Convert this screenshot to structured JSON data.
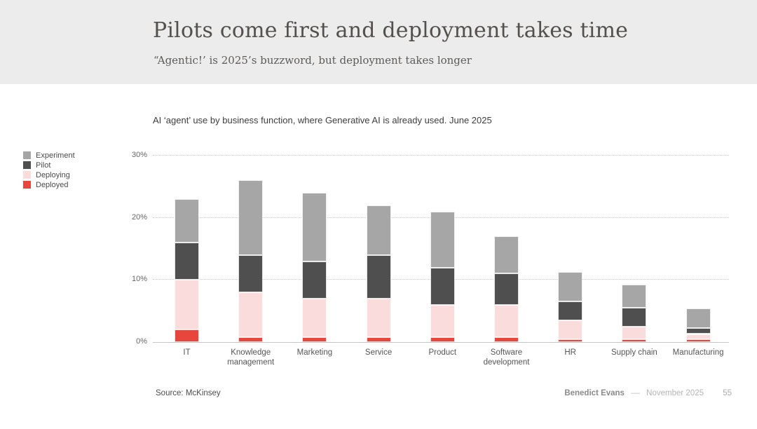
{
  "slide": {
    "title": "Pilots come first and deployment takes time",
    "subtitle": "“Agentic!’ is 2025’s buzzword, but deployment takes longer",
    "source": "Source: McKinsey",
    "footer": {
      "author": "Benedict Evans",
      "separator": "––",
      "date": "November 2025",
      "page": "55"
    }
  },
  "chart_data": {
    "type": "bar",
    "stacked": true,
    "title": "AI ‘agent’ use by business function, where Generative AI is already used. June 2025",
    "categories": [
      "IT",
      "Knowledge management",
      "Marketing",
      "Service",
      "Product",
      "Software development",
      "HR",
      "Supply chain",
      "Manufacturing"
    ],
    "series": [
      {
        "name": "Deployed",
        "color": "#e8463d",
        "values": [
          2.0,
          0.8,
          0.8,
          0.8,
          0.8,
          0.8,
          0.4,
          0.4,
          0.4
        ]
      },
      {
        "name": "Deploying",
        "color": "#fadcdc",
        "values": [
          8.0,
          7.2,
          6.2,
          6.2,
          5.2,
          5.2,
          3.1,
          2.1,
          0.9
        ]
      },
      {
        "name": "Pilot",
        "color": "#4f4f4f",
        "values": [
          6.0,
          6.0,
          6.0,
          7.0,
          6.0,
          5.0,
          3.0,
          3.0,
          1.0
        ]
      },
      {
        "name": "Experiment",
        "color": "#a6a6a6",
        "values": [
          7.0,
          12.0,
          11.0,
          8.0,
          9.0,
          6.0,
          4.8,
          3.8,
          3.1
        ]
      }
    ],
    "totals": [
      23.0,
      26.0,
      24.0,
      22.0,
      21.0,
      17.0,
      11.3,
      9.3,
      5.4
    ],
    "legend_order": [
      "Experiment",
      "Pilot",
      "Deploying",
      "Deployed"
    ],
    "legend_position": "left",
    "grid": "dotted-horizontal",
    "ylim": [
      0,
      30
    ],
    "yticks": [
      0,
      10,
      20,
      30
    ],
    "ytick_labels": [
      "0%",
      "10%",
      "20%",
      "30%"
    ],
    "xlabel": "",
    "ylabel": ""
  }
}
